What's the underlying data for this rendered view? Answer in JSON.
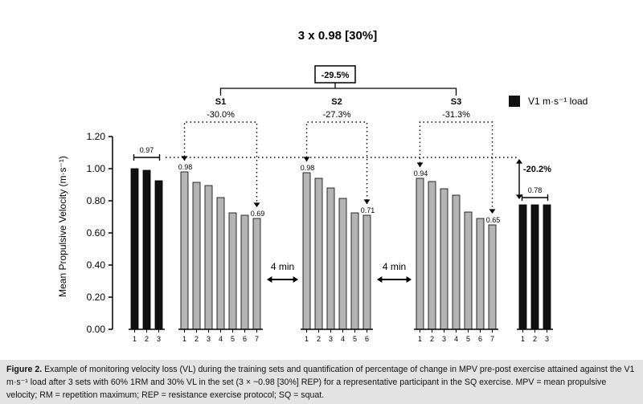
{
  "figure": {
    "title": "3 x 0.98 [30%]",
    "caption_label": "Figure 2.",
    "caption_text": "Example of monitoring velocity loss (VL) during the training sets and quantification of percentage of change in MPV pre-post exercise attained against the V1 m·s⁻¹ load after 3 sets with 60% 1RM and 30% VL in the set (3 × ~0.98 [30%] REP) for a representative participant in the SQ exercise. MPV = mean propulsive velocity; RM = repetition maximum; REP = resistance exercise protocol; SQ = squat."
  },
  "chart_data": {
    "type": "bar",
    "title": "3 x 0.98 [30%]",
    "ylabel": "Mean Propulsive Velocity (m·s⁻¹)",
    "ylim": [
      0,
      1.2
    ],
    "yticks": [
      "0.00",
      "0.20",
      "0.40",
      "0.60",
      "0.80",
      "1.00",
      "1.20"
    ],
    "legend": {
      "label": "V1 m·s⁻¹ load",
      "color": "#111111",
      "position": "top-right"
    },
    "groups": [
      {
        "name": "",
        "kind": "v1",
        "color": "#111111",
        "reps": [
          "1",
          "2",
          "3"
        ],
        "values": [
          1.0,
          0.99,
          0.925
        ]
      },
      {
        "name": "S1",
        "kind": "set",
        "color": "#b4b4b4",
        "change": "-30.0%",
        "reps": [
          "1",
          "2",
          "3",
          "4",
          "5",
          "6",
          "7"
        ],
        "values": [
          0.98,
          0.915,
          0.895,
          0.82,
          0.725,
          0.71,
          0.69
        ],
        "first_label": "0.98",
        "last_label": "0.69"
      },
      {
        "name": "S2",
        "kind": "set",
        "color": "#b4b4b4",
        "change": "-27.3%",
        "reps": [
          "1",
          "2",
          "3",
          "4",
          "5",
          "6"
        ],
        "values": [
          0.975,
          0.94,
          0.88,
          0.815,
          0.725,
          0.71
        ],
        "first_label": "0.98",
        "last_label": "0.71"
      },
      {
        "name": "S3",
        "kind": "set",
        "color": "#b4b4b4",
        "change": "-31.3%",
        "reps": [
          "1",
          "2",
          "3",
          "4",
          "5",
          "6",
          "7"
        ],
        "values": [
          0.94,
          0.92,
          0.875,
          0.835,
          0.73,
          0.69,
          0.65
        ],
        "first_label": "0.94",
        "last_label": "0.65"
      },
      {
        "name": "",
        "kind": "v1",
        "color": "#111111",
        "reps": [
          "1",
          "2",
          "3"
        ],
        "values": [
          0.775,
          0.775,
          0.775
        ]
      }
    ],
    "annotations": {
      "overall_change": "-29.5%",
      "pre_post_change": "-20.2%",
      "pre_mean": "0.97",
      "post_mean": "0.78",
      "rest_1": "4 min",
      "rest_2": "4 min"
    }
  }
}
